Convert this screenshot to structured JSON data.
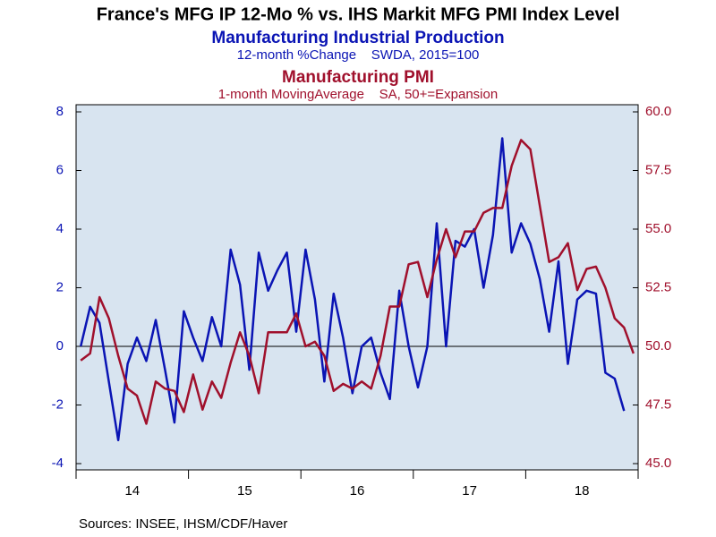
{
  "chart_data": {
    "type": "line",
    "title": "France's MFG IP 12-Mo % vs. IHS Markit MFG PMI Index Level",
    "subtitle": "Manufacturing Industrial Production",
    "subtitle_note": "12-month %Change    SWDA, 2015=100",
    "subtitle2": "Manufacturing PMI",
    "subtitle2_note": "1-month MovingAverage    SA, 50+=Expansion",
    "source": "Sources:  INSEE, IHSM/CDF/Haver",
    "categories": [
      null,
      null,
      null,
      null,
      null,
      null,
      "14",
      null,
      null,
      null,
      null,
      null,
      null,
      null,
      null,
      null,
      null,
      null,
      "15",
      null,
      null,
      null,
      null,
      null,
      null,
      null,
      null,
      null,
      null,
      null,
      "16",
      null,
      null,
      null,
      null,
      null,
      null,
      null,
      null,
      null,
      null,
      null,
      "17",
      null,
      null,
      null,
      null,
      null,
      null,
      null,
      null,
      null,
      null,
      null,
      "18",
      null,
      null,
      null,
      null,
      null
    ],
    "series": [
      {
        "name": "Manufacturing Industrial Production",
        "color": "#0a14b4",
        "axis": "y",
        "values": [
          0.0,
          1.35,
          0.8,
          -1.2,
          -3.2,
          -0.6,
          0.3,
          -0.5,
          0.9,
          -0.8,
          -2.6,
          1.2,
          0.3,
          -0.5,
          1.0,
          0.0,
          3.3,
          2.1,
          -0.8,
          3.2,
          1.9,
          2.6,
          3.2,
          0.5,
          3.3,
          1.6,
          -1.2,
          1.8,
          0.3,
          -1.6,
          0.0,
          0.3,
          -0.9,
          -1.8,
          1.9,
          0.0,
          -1.4,
          0.0,
          4.2,
          0.0,
          3.6,
          3.4,
          4.0,
          2.0,
          3.8,
          7.1,
          3.2,
          4.2,
          3.5,
          2.3,
          0.5,
          2.9,
          -0.6,
          1.6,
          1.9,
          1.8,
          -0.9,
          -1.1,
          -2.2,
          null
        ]
      },
      {
        "name": "Manufacturing PMI",
        "color": "#a0102c",
        "axis": "y2",
        "values": [
          49.4,
          49.7,
          52.1,
          51.2,
          49.6,
          48.2,
          47.9,
          46.7,
          48.5,
          48.2,
          48.1,
          47.2,
          48.8,
          47.3,
          48.5,
          47.8,
          49.3,
          50.6,
          49.6,
          48.0,
          50.6,
          50.6,
          50.6,
          51.4,
          50.0,
          50.2,
          49.6,
          48.1,
          48.4,
          48.2,
          48.5,
          48.2,
          49.6,
          51.7,
          51.7,
          53.5,
          53.6,
          52.1,
          53.7,
          55.0,
          53.8,
          54.9,
          54.9,
          55.7,
          55.9,
          55.9,
          57.7,
          58.8,
          58.4,
          56.0,
          53.6,
          53.8,
          54.4,
          52.4,
          53.3,
          53.4,
          52.5,
          51.2,
          50.8,
          49.7
        ]
      }
    ],
    "ylim": [
      -4,
      8
    ],
    "yticks": [
      -4,
      -2,
      0,
      2,
      4,
      6,
      8
    ],
    "y2lim": [
      45,
      60
    ],
    "y2ticks": [
      {
        "value": 45,
        "label": "45.0"
      },
      {
        "value": 47.5,
        "label": "47.5"
      },
      {
        "value": 50,
        "label": "50.0"
      },
      {
        "value": 52.5,
        "label": "52.5"
      },
      {
        "value": 55,
        "label": "55.0"
      },
      {
        "value": 57.5,
        "label": "57.5"
      },
      {
        "value": 60,
        "label": "60.0"
      }
    ]
  }
}
